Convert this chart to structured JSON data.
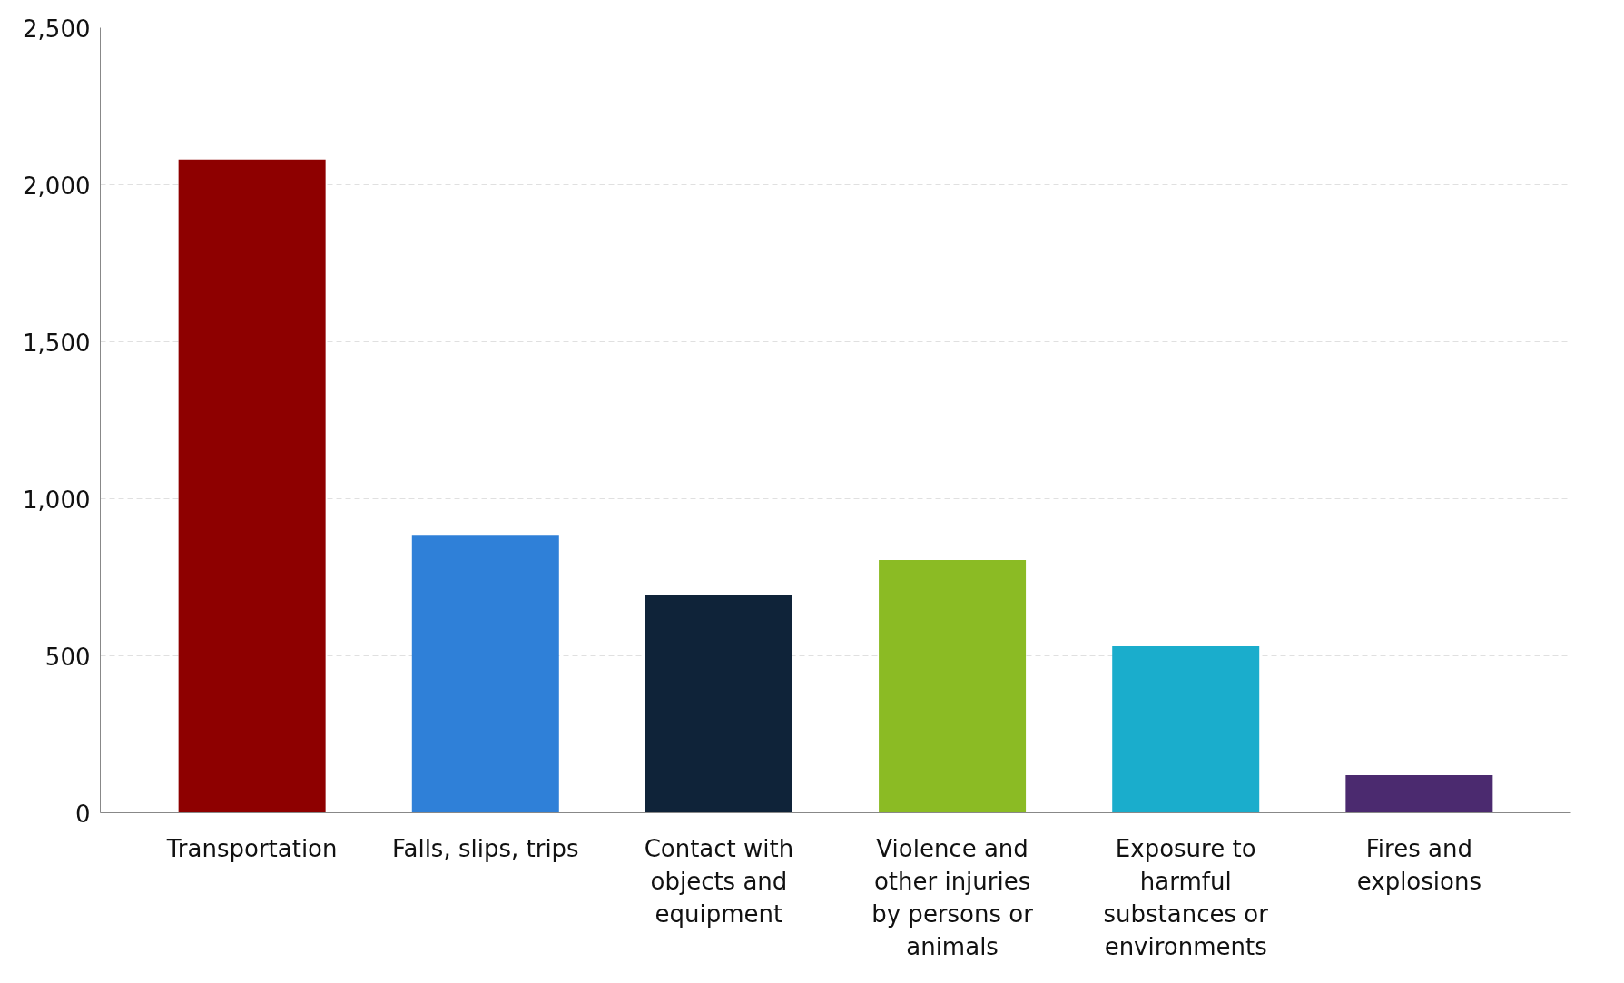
{
  "chart_data": {
    "type": "bar",
    "categories": [
      "Transportation",
      "Falls, slips, trips",
      "Contact with objects and equipment",
      "Violence and other injuries by persons or animals",
      "Exposure to harmful substances or environments",
      "Fires and explosions"
    ],
    "values": [
      2080,
      885,
      695,
      805,
      530,
      120
    ],
    "colors": [
      "#8e0000",
      "#2f80d8",
      "#0f2339",
      "#8bbb24",
      "#1aadcc",
      "#4b2a6f"
    ],
    "ylim": [
      0,
      2500
    ],
    "yticks": [
      0,
      500,
      {
        "value": 1000,
        "label": "1,000"
      },
      {
        "value": 1500,
        "label": "1,500"
      },
      {
        "value": 2000,
        "label": "2,000"
      },
      {
        "value": 2500,
        "label": "2,500"
      }
    ],
    "grid": "y"
  }
}
